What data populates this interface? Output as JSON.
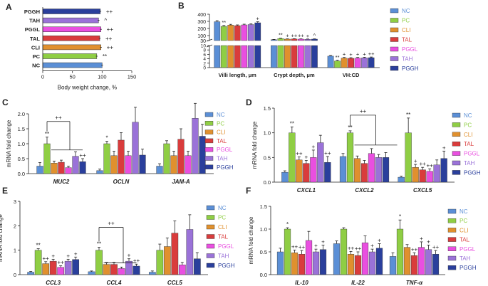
{
  "colors": {
    "NC": "#5b8fd6",
    "PC": "#8fce44",
    "CLI": "#e0902e",
    "TAL": "#d93c3c",
    "PGGL": "#e94fe0",
    "TAH": "#9a72d8",
    "PGGH": "#2a3f9c"
  },
  "chart_data": [
    {
      "panel": "A",
      "type": "bar",
      "orientation": "horizontal",
      "categories": [
        "PGGH",
        "TAH",
        "PGGL",
        "TAL",
        "CLI",
        "PC",
        "NC"
      ],
      "values": [
        97,
        94,
        98,
        96,
        98,
        91,
        100
      ],
      "errors": [
        1.5,
        1.5,
        1.5,
        1.5,
        1.5,
        1.5,
        1.5
      ],
      "annotations": [
        "++",
        "^",
        "++",
        "++",
        "++",
        "**",
        ""
      ],
      "xlabel": "Body weight change, %",
      "xlim": [
        0,
        150
      ],
      "xticks": [
        "0",
        "50",
        "100",
        "150"
      ]
    },
    {
      "panel": "B",
      "type": "bar",
      "broken_axis": true,
      "ylim_upper": [
        30,
        400
      ],
      "ylim_lower": [
        0,
        10
      ],
      "yticks_upper": [
        "400",
        "300",
        "200",
        "100",
        "30"
      ],
      "yticks_lower": [
        "10",
        "8",
        "6",
        "4",
        "2",
        "0"
      ],
      "groups": [
        {
          "label": "Villi length, μm",
          "axis": "upper",
          "values": [
            295,
            230,
            248,
            240,
            250,
            255,
            280
          ],
          "errors": [
            15,
            12,
            10,
            10,
            10,
            10,
            15
          ],
          "annotations": [
            "",
            "**",
            "",
            "",
            "",
            "",
            "+"
          ]
        },
        {
          "label": "Crypt depth, μm",
          "axis": "upper",
          "values": [
            42,
            58,
            50,
            52,
            50,
            48,
            50
          ],
          "errors": [
            4,
            5,
            4,
            4,
            4,
            4,
            4
          ],
          "annotations": [
            "",
            "**",
            "+",
            "++",
            "++",
            "+",
            "^"
          ]
        },
        {
          "label": "VH:CD",
          "axis": "lower",
          "values": [
            5.2,
            3.0,
            4.3,
            4.2,
            4.3,
            4.4,
            4.5
          ],
          "errors": [
            0.3,
            0.3,
            0.3,
            0.3,
            0.3,
            0.3,
            0.3
          ],
          "annotations": [
            "",
            "**",
            "+",
            "+",
            "+",
            "+",
            "++"
          ]
        }
      ],
      "legend": [
        "NC",
        "PC",
        "CLI",
        "TAL",
        "PGGL",
        "TAH",
        "PGGH"
      ]
    },
    {
      "panel": "C",
      "type": "bar",
      "ylabel": "mRNA fold change",
      "ylim": [
        0,
        2.0
      ],
      "yticks": [
        "0.0",
        "0.5",
        "1.0",
        "1.5",
        "2.0"
      ],
      "bracket": "++",
      "groups": [
        {
          "label": "MUC2",
          "values": [
            0.25,
            1.0,
            0.35,
            0.38,
            0.2,
            0.58,
            0.4
          ],
          "errors": [
            0.12,
            0.22,
            0.07,
            0.07,
            0.05,
            0.15,
            0.1
          ],
          "annotations": [
            "",
            "**",
            "",
            "",
            "",
            "",
            "++"
          ]
        },
        {
          "label": "OCLN",
          "values": [
            0.1,
            1.0,
            0.6,
            1.12,
            0.6,
            1.72,
            0.62
          ],
          "errors": [
            0.05,
            0.08,
            0.15,
            0.25,
            0.15,
            0.5,
            0.2
          ],
          "annotations": [
            "",
            "*",
            "",
            "",
            "",
            "",
            ""
          ]
        },
        {
          "label": "JAM-A",
          "values": [
            0.25,
            1.0,
            0.6,
            1.15,
            0.6,
            1.85,
            1.25
          ],
          "errors": [
            0.08,
            0.1,
            0.15,
            0.35,
            0.15,
            0.5,
            0.4
          ],
          "annotations": [
            "",
            "",
            "",
            "",
            "",
            "",
            ""
          ]
        }
      ],
      "legend": [
        "NC",
        "PC",
        "CLI",
        "TAL",
        "PGGL",
        "TAH",
        "PGGH"
      ]
    },
    {
      "panel": "D",
      "type": "bar",
      "ylabel": "mRNA fold change",
      "ylim": [
        0,
        1.5
      ],
      "yticks": [
        "0.0",
        "0.5",
        "1.0",
        "1.5"
      ],
      "bracket": "++",
      "groups": [
        {
          "label": "CXCL1",
          "values": [
            0.2,
            1.0,
            0.45,
            0.38,
            0.5,
            0.8,
            0.4
          ],
          "errors": [
            0.03,
            0.12,
            0.06,
            0.06,
            0.15,
            0.15,
            0.12
          ],
          "annotations": [
            "",
            "**",
            "++",
            "+",
            "+",
            "",
            "++"
          ]
        },
        {
          "label": "CXCL2",
          "values": [
            0.52,
            1.0,
            0.48,
            0.38,
            0.58,
            0.5,
            0.5
          ],
          "errors": [
            0.06,
            0.04,
            0.05,
            0.06,
            0.1,
            0.06,
            0.1
          ],
          "annotations": [
            "",
            "**",
            "",
            "",
            "",
            "",
            ""
          ]
        },
        {
          "label": "CXCL5",
          "values": [
            0.1,
            1.0,
            0.3,
            0.25,
            0.22,
            0.35,
            0.48
          ],
          "errors": [
            0.02,
            0.3,
            0.06,
            0.05,
            0.05,
            0.1,
            0.15
          ],
          "annotations": [
            "",
            "**",
            "+",
            "++",
            "++",
            "",
            "+"
          ]
        }
      ],
      "legend": [
        "NC",
        "PC",
        "CLI",
        "TAL",
        "PGGL",
        "TAH",
        "PGGH"
      ]
    },
    {
      "panel": "E",
      "type": "bar",
      "ylabel": "mRNA fold change",
      "ylim": [
        0,
        3
      ],
      "yticks": [
        "0",
        "1",
        "2",
        "3"
      ],
      "bracket": "++",
      "groups": [
        {
          "label": "CCL3",
          "values": [
            0.1,
            1.0,
            0.45,
            0.55,
            0.3,
            0.55,
            0.62
          ],
          "errors": [
            0.03,
            0.06,
            0.08,
            0.08,
            0.06,
            0.08,
            0.1
          ],
          "annotations": [
            "",
            "**",
            "++",
            "+",
            "++",
            "+",
            "+"
          ]
        },
        {
          "label": "CCL4",
          "values": [
            0.12,
            1.0,
            0.42,
            0.42,
            0.25,
            0.55,
            0.35
          ],
          "errors": [
            0.03,
            0.12,
            0.08,
            0.08,
            0.06,
            0.1,
            0.08
          ],
          "annotations": [
            "",
            "**",
            "",
            "",
            "",
            "+",
            "++"
          ]
        },
        {
          "label": "CCL5",
          "values": [
            0.1,
            1.0,
            1.15,
            1.7,
            0.4,
            1.85,
            0.65
          ],
          "errors": [
            0.05,
            0.25,
            0.35,
            0.5,
            0.1,
            0.6,
            0.25
          ],
          "annotations": [
            "",
            "",
            "",
            "",
            "",
            "",
            ""
          ]
        }
      ],
      "legend": [
        "NC",
        "PC",
        "CLI",
        "TAL",
        "PGGL",
        "TAH",
        "PGGH"
      ]
    },
    {
      "panel": "F",
      "type": "bar",
      "ylabel": "mRNA fold change",
      "ylim": [
        0,
        1.5
      ],
      "yticks": [
        "0.0",
        "0.5",
        "1.0",
        "1.5"
      ],
      "groups": [
        {
          "label": "IL-10",
          "values": [
            0.5,
            1.0,
            0.48,
            0.45,
            0.75,
            0.5,
            0.55
          ],
          "errors": [
            0.08,
            0.03,
            0.06,
            0.08,
            0.2,
            0.06,
            0.1
          ],
          "annotations": [
            "",
            "*",
            "++",
            "++",
            "",
            "+",
            "+"
          ]
        },
        {
          "label": "IL-22",
          "values": [
            0.68,
            1.0,
            0.45,
            0.42,
            0.7,
            0.5,
            0.58
          ],
          "errors": [
            0.06,
            0.03,
            0.06,
            0.08,
            0.15,
            0.06,
            0.1
          ],
          "annotations": [
            "",
            "",
            "++",
            "++",
            "",
            "+",
            "+"
          ]
        },
        {
          "label": "TNF-α",
          "values": [
            0.4,
            1.0,
            0.6,
            0.42,
            0.6,
            0.55,
            0.45
          ],
          "errors": [
            0.08,
            0.2,
            0.06,
            0.06,
            0.12,
            0.1,
            0.08
          ],
          "annotations": [
            "",
            "*",
            "",
            "++",
            "+",
            "+",
            "++"
          ]
        }
      ],
      "legend": [
        "NC",
        "PC",
        "CLI",
        "TAL",
        "PGGL",
        "TAH",
        "PGGH"
      ]
    }
  ]
}
